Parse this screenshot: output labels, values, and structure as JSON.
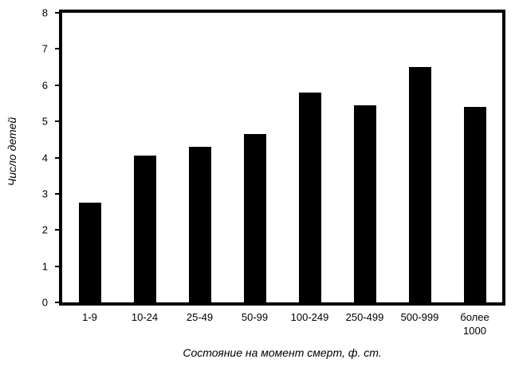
{
  "figure": {
    "background": "#ffffff",
    "frame_color": "#000000"
  },
  "chart_data": {
    "type": "bar",
    "categories": [
      "1-9",
      "10-24",
      "25-49",
      "50-99",
      "100-249",
      "250-499",
      "500-999",
      "более\n1000"
    ],
    "values": [
      2.75,
      4.05,
      4.3,
      4.65,
      5.8,
      5.45,
      6.5,
      5.4
    ],
    "title": "",
    "xlabel": "Состояние на момент смерт, ф. ст.",
    "ylabel": "Число детей",
    "ylim": [
      0,
      8
    ],
    "yticks": [
      0,
      1,
      2,
      3,
      4,
      5,
      6,
      7,
      8
    ],
    "bar_color": "#000000",
    "grid": false,
    "legend": "none"
  }
}
